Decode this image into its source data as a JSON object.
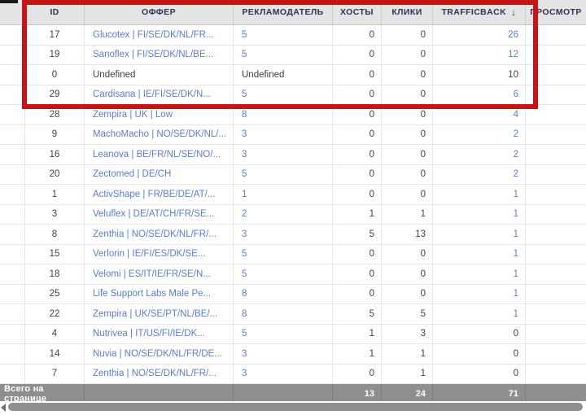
{
  "table": {
    "columns": [
      {
        "key": "select",
        "label": ""
      },
      {
        "key": "id",
        "label": "ID"
      },
      {
        "key": "offer",
        "label": "ОФФЕР"
      },
      {
        "key": "advertiser",
        "label": "РЕКЛАМОДАТЕЛЬ"
      },
      {
        "key": "hosts",
        "label": "ХОСТЫ"
      },
      {
        "key": "clicks",
        "label": "КЛИКИ"
      },
      {
        "key": "trafficback",
        "label": "TRAFFICBACK",
        "sorted": "desc"
      },
      {
        "key": "views",
        "label": "ПРОСМОТР"
      }
    ],
    "sort_icon": "↓",
    "rows": [
      {
        "id": "17",
        "offer": "Glucotex | FI/SE/DK/NL/FR...",
        "offer_link": true,
        "advertiser": "5",
        "advertiser_link": true,
        "hosts": "0",
        "clicks": "0",
        "trafficback": "26",
        "trafficback_link": true
      },
      {
        "id": "19",
        "offer": "Sanoflex | FI/SE/DK/NL/BE...",
        "offer_link": true,
        "advertiser": "5",
        "advertiser_link": true,
        "hosts": "0",
        "clicks": "0",
        "trafficback": "12",
        "trafficback_link": true
      },
      {
        "id": "0",
        "offer": "Undefined",
        "offer_link": false,
        "advertiser": "Undefined",
        "advertiser_link": false,
        "hosts": "0",
        "clicks": "0",
        "trafficback": "10",
        "trafficback_link": false
      },
      {
        "id": "29",
        "offer": "Cardisana | IE/FI/SE/DK/N...",
        "offer_link": true,
        "advertiser": "5",
        "advertiser_link": true,
        "hosts": "0",
        "clicks": "0",
        "trafficback": "6",
        "trafficback_link": true
      },
      {
        "id": "28",
        "offer": "Zempira | UK | Low",
        "offer_link": true,
        "advertiser": "8",
        "advertiser_link": true,
        "hosts": "0",
        "clicks": "0",
        "trafficback": "4",
        "trafficback_link": true
      },
      {
        "id": "9",
        "offer": "MachoMacho | NO/SE/DK/NL/...",
        "offer_link": true,
        "advertiser": "3",
        "advertiser_link": true,
        "hosts": "0",
        "clicks": "0",
        "trafficback": "2",
        "trafficback_link": true
      },
      {
        "id": "16",
        "offer": "Leanova | BE/FR/NL/SE/NO/...",
        "offer_link": true,
        "advertiser": "3",
        "advertiser_link": true,
        "hosts": "0",
        "clicks": "0",
        "trafficback": "2",
        "trafficback_link": true
      },
      {
        "id": "20",
        "offer": "Zectomed | DE/CH",
        "offer_link": true,
        "advertiser": "5",
        "advertiser_link": true,
        "hosts": "0",
        "clicks": "0",
        "trafficback": "2",
        "trafficback_link": true
      },
      {
        "id": "1",
        "offer": "ActivShape | FR/BE/DE/AT/...",
        "offer_link": true,
        "advertiser": "1",
        "advertiser_link": true,
        "hosts": "0",
        "clicks": "0",
        "trafficback": "1",
        "trafficback_link": true
      },
      {
        "id": "3",
        "offer": "Veluflex | DE/AT/CH/FR/SE...",
        "offer_link": true,
        "advertiser": "2",
        "advertiser_link": true,
        "hosts": "1",
        "clicks": "1",
        "trafficback": "1",
        "trafficback_link": true
      },
      {
        "id": "8",
        "offer": "Zenthia | NO/SE/DK/NL/FR/...",
        "offer_link": true,
        "advertiser": "3",
        "advertiser_link": true,
        "hosts": "5",
        "clicks": "13",
        "trafficback": "1",
        "trafficback_link": true
      },
      {
        "id": "15",
        "offer": "Verlorin | IE/FI/ES/DK/SE...",
        "offer_link": true,
        "advertiser": "5",
        "advertiser_link": true,
        "hosts": "0",
        "clicks": "0",
        "trafficback": "1",
        "trafficback_link": true
      },
      {
        "id": "18",
        "offer": "Velomi | ES/IT/IE/FR/SE/N...",
        "offer_link": true,
        "advertiser": "5",
        "advertiser_link": true,
        "hosts": "0",
        "clicks": "0",
        "trafficback": "1",
        "trafficback_link": true
      },
      {
        "id": "25",
        "offer": "Life Support Labs Male Pe...",
        "offer_link": true,
        "advertiser": "8",
        "advertiser_link": true,
        "hosts": "0",
        "clicks": "0",
        "trafficback": "1",
        "trafficback_link": true
      },
      {
        "id": "22",
        "offer": "Zempira | UK/SE/PT/NL/BE/...",
        "offer_link": true,
        "advertiser": "8",
        "advertiser_link": true,
        "hosts": "5",
        "clicks": "5",
        "trafficback": "1",
        "trafficback_link": true
      },
      {
        "id": "4",
        "offer": "Nutrivea | IT/US/FI/IE/DK...",
        "offer_link": true,
        "advertiser": "5",
        "advertiser_link": true,
        "hosts": "1",
        "clicks": "3",
        "trafficback": "0",
        "trafficback_link": false
      },
      {
        "id": "14",
        "offer": "Nuvia | NO/SE/DK/NL/FR/DE...",
        "offer_link": true,
        "advertiser": "3",
        "advertiser_link": true,
        "hosts": "1",
        "clicks": "1",
        "trafficback": "0",
        "trafficback_link": false
      },
      {
        "id": "7",
        "offer": "Zenthia | NO/SE/DK/NL/FR/...",
        "offer_link": true,
        "advertiser": "3",
        "advertiser_link": true,
        "hosts": "0",
        "clicks": "1",
        "trafficback": "0",
        "trafficback_link": false
      }
    ],
    "footer": {
      "label": "Всего на странице",
      "hosts_total": "13",
      "clicks_total": "24",
      "trafficback_total": "71"
    }
  },
  "annotation": {
    "highlight_color": "#c81414",
    "highlighted_row_ids": [
      "17",
      "19",
      "0",
      "29"
    ]
  },
  "colors": {
    "link_blue": "#5b7dc9",
    "header_text": "#2f3456",
    "footer_bg": "#8e8e8e"
  }
}
